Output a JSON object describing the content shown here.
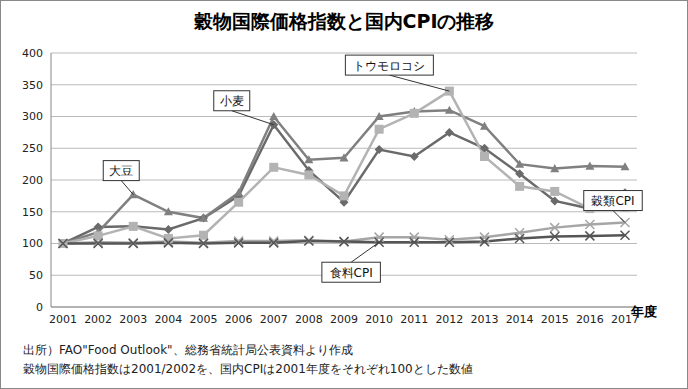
{
  "chart_data": {
    "type": "line",
    "title": "穀物国際価格指数と国内CPIの推移",
    "x_label": "年度",
    "categories": [
      "2001",
      "2002",
      "2003",
      "2004",
      "2005",
      "2006",
      "2007",
      "2008",
      "2009",
      "2010",
      "2011",
      "2012",
      "2013",
      "2014",
      "2015",
      "2016",
      "2017"
    ],
    "series": [
      {
        "name": "小麦",
        "color": "#6a6a6a",
        "marker": "diamond",
        "values": [
          100,
          126,
          127,
          122,
          140,
          175,
          287,
          215,
          165,
          248,
          237,
          275,
          250,
          210,
          167,
          155,
          180
        ]
      },
      {
        "name": "大豆",
        "color": "#808080",
        "marker": "triangle",
        "values": [
          100,
          118,
          177,
          150,
          140,
          180,
          300,
          232,
          235,
          300,
          308,
          310,
          285,
          225,
          218,
          222,
          221
        ]
      },
      {
        "name": "トウモロコシ",
        "color": "#b3b3b3",
        "marker": "square",
        "values": [
          100,
          112,
          127,
          108,
          113,
          165,
          220,
          208,
          175,
          280,
          305,
          340,
          237,
          190,
          182,
          155,
          157
        ]
      },
      {
        "name": "穀類CPI",
        "color": "#a6a6a6",
        "marker": "x",
        "values": [
          100,
          102,
          101,
          103,
          101,
          104,
          104,
          105,
          103,
          110,
          110,
          106,
          110,
          117,
          125,
          130,
          133
        ]
      },
      {
        "name": "食料CPI",
        "color": "#555555",
        "marker": "x",
        "values": [
          100,
          100,
          100,
          101,
          100,
          101,
          101,
          104,
          103,
          102,
          102,
          102,
          103,
          108,
          111,
          112,
          113
        ]
      }
    ],
    "ylim": [
      0,
      400
    ],
    "yticks": [
      0,
      50,
      100,
      150,
      200,
      250,
      300,
      350,
      400
    ],
    "grid": true,
    "notes": [
      "出所）FAO\"Food Outlook\"、総務省統計局公表資料より作成",
      "穀物国際価格指数は2001/2002を、国内CPIは2001年度をそれぞれ100とした数値"
    ]
  }
}
